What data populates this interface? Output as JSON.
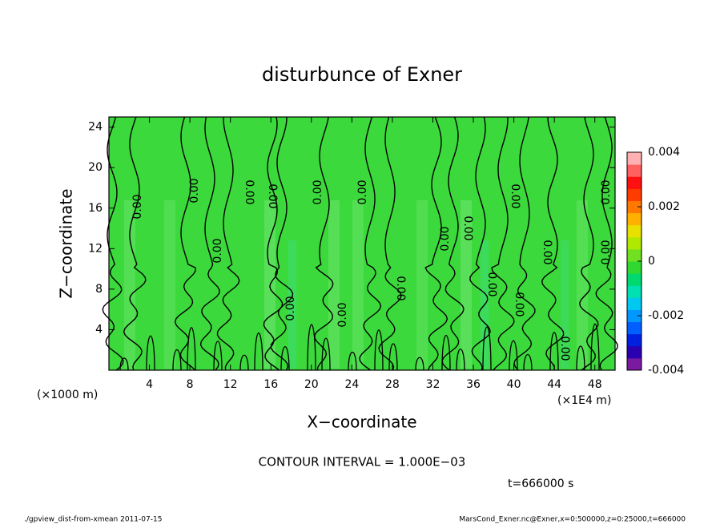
{
  "chart_data": {
    "type": "contour",
    "title": "disturbunce of Exner",
    "x_label": "X−coordinate",
    "y_label": "Z−coordinate",
    "x_unit_left": "(×1000 m)",
    "x_unit_right": "(×1E4 m)",
    "xlim": [
      0,
      50
    ],
    "xticks": [
      4,
      8,
      12,
      16,
      20,
      24,
      28,
      32,
      36,
      40,
      44,
      48
    ],
    "ylim": [
      0,
      25
    ],
    "yticks": [
      4,
      8,
      12,
      16,
      20,
      24
    ],
    "fill_color": "#3cd93c",
    "contour_labels": [
      "0.00",
      "0.00",
      "0.00",
      "0.00",
      "0.00",
      "0.00",
      "0.00",
      "0.00",
      "0.00",
      "0.00",
      "0.00",
      "0.00",
      "0.00",
      "0.00",
      "0.00",
      "0.00",
      "0.00",
      "0.00",
      "0.00"
    ],
    "colorbar": {
      "lim": [
        -0.004,
        0.004
      ],
      "ticks": [
        -0.004,
        -0.002,
        0,
        0.002,
        0.004
      ],
      "colors": [
        "#7a1aa0",
        "#2a00b0",
        "#0020e0",
        "#0060ff",
        "#0098ff",
        "#00c8f0",
        "#00e0b0",
        "#00d870",
        "#30d830",
        "#70e020",
        "#b0e800",
        "#e8e000",
        "#ffb000",
        "#ff7800",
        "#ff3c00",
        "#ff1010",
        "#ff6060",
        "#ffb0b0"
      ]
    },
    "contour_interval": "CONTOUR INTERVAL = 1.000E−03",
    "time_label": "t=666000 s",
    "footer_left": "./gpview_dist-from-xmean  2011-07-15",
    "footer_right": "MarsCond_Exner.nc@Exner,x=0:500000,z=0:25000,t=666000"
  }
}
